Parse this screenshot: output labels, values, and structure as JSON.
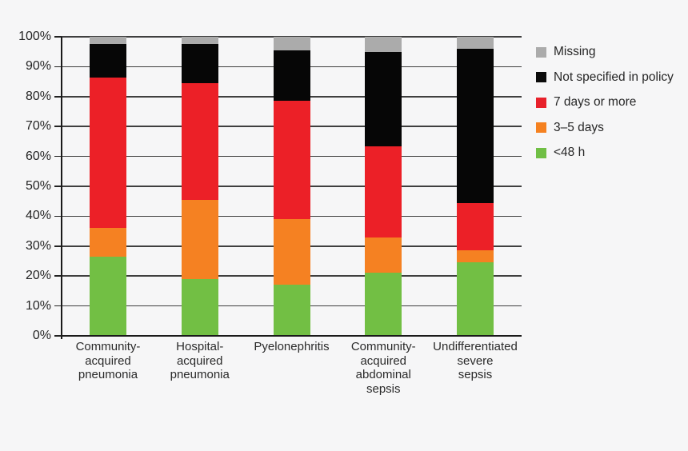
{
  "chart_data": {
    "type": "bar",
    "stacked": true,
    "orientation": "vertical",
    "categories": [
      "Community-\nacquired\npneumonia",
      "Hospital-\nacquired\npneumonia",
      "Pyelonephritis",
      "Community-\nacquired\nabdominal\nsepsis",
      "Undifferentiated\nsevere\nsepsis"
    ],
    "series": [
      {
        "name": "<48 h",
        "color": "#72bf44",
        "values": [
          26.5,
          19,
          17,
          21,
          24.5
        ]
      },
      {
        "name": "3–5 days",
        "color": "#f58122",
        "values": [
          9.5,
          26.5,
          22,
          12,
          4
        ]
      },
      {
        "name": "7 days or more",
        "color": "#ec2027",
        "values": [
          50.5,
          39,
          39.5,
          30.5,
          16
        ]
      },
      {
        "name": "Not specified in policy",
        "color": "#060606",
        "values": [
          11,
          13,
          17,
          31.5,
          51.5
        ]
      },
      {
        "name": "Missing",
        "color": "#ababab",
        "values": [
          2.5,
          2.5,
          4.5,
          5,
          4
        ]
      }
    ],
    "ylim": [
      0,
      100
    ],
    "ytick_step": 10,
    "ytick_labels": [
      "0%",
      "10%",
      "20%",
      "30%",
      "40%",
      "50%",
      "60%",
      "70%",
      "80%",
      "90%",
      "100%"
    ],
    "grid": "horizontal",
    "legend_position": "right"
  },
  "legend": {
    "items": [
      {
        "label": "Missing",
        "color": "#ababab"
      },
      {
        "label": "Not specified in policy",
        "color": "#0b0b0b"
      },
      {
        "label": "7 days or more",
        "color": "#e8212b"
      },
      {
        "label": "3–5 days",
        "color": "#f58120"
      },
      {
        "label": "<48 h",
        "color": "#70bf45"
      }
    ]
  },
  "colors": {
    "background": "#f6f6f7",
    "gridline": "#3f3f3f",
    "axis": "#1a1a1a",
    "text": "#2a2a2a"
  }
}
